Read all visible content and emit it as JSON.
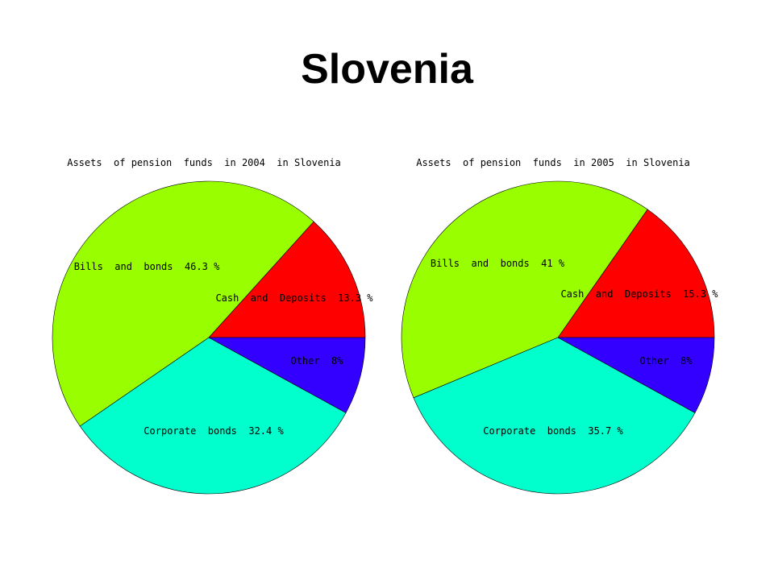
{
  "page": {
    "title": "Slovenia"
  },
  "chart_data": [
    {
      "type": "pie",
      "title": "Assets  of pension  funds  in 2004  in Slovenia",
      "slices": [
        {
          "name": "Cash  and Deposits",
          "value": 13.3,
          "label": "Cash  and  Deposits  13.3 %",
          "color": "#ff0000"
        },
        {
          "name": "Bills and bonds",
          "value": 46.3,
          "label": "Bills  and  bonds  46.3 %",
          "color": "#99ff00"
        },
        {
          "name": "Corporate bonds",
          "value": 32.4,
          "label": "Corporate  bonds  32.4 %",
          "color": "#00ffcc"
        },
        {
          "name": "Other",
          "value": 8,
          "label": "Other  8%",
          "color": "#3300ff"
        }
      ]
    },
    {
      "type": "pie",
      "title": "Assets  of pension  funds  in 2005  in Slovenia",
      "slices": [
        {
          "name": "Cash  and Deposits",
          "value": 15.3,
          "label": "Cash  and  Deposits  15.3 %",
          "color": "#ff0000"
        },
        {
          "name": "Bills and bonds",
          "value": 41,
          "label": "Bills  and  bonds  41 %",
          "color": "#99ff00"
        },
        {
          "name": "Corporate bonds",
          "value": 35.7,
          "label": "Corporate  bonds  35.7 %",
          "color": "#00ffcc"
        },
        {
          "name": "Other",
          "value": 8,
          "label": "Other  8%",
          "color": "#3300ff"
        }
      ]
    }
  ]
}
